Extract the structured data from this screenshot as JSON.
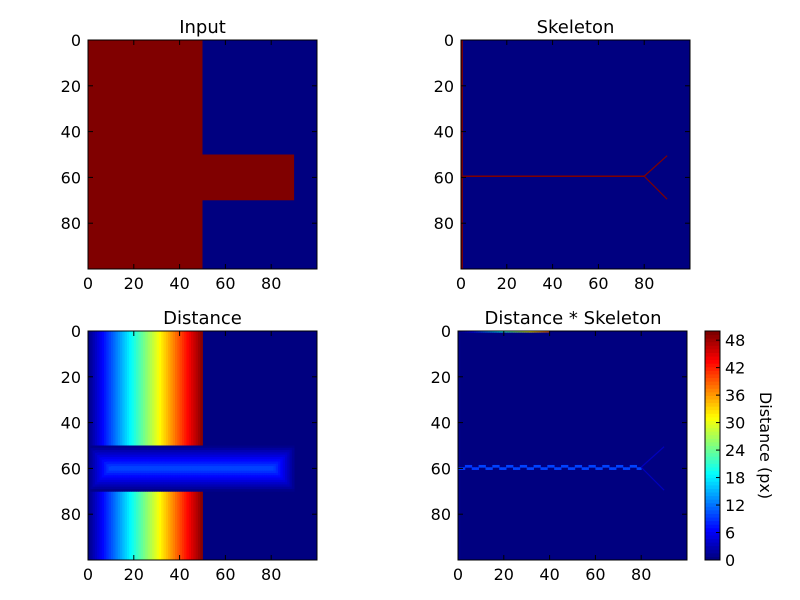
{
  "colormap": "jet",
  "chart_data": [
    {
      "type": "heatmap",
      "title": "Input",
      "image_shape": [
        100,
        100
      ],
      "xticks": [
        0,
        20,
        40,
        60,
        80
      ],
      "yticks": [
        0,
        20,
        40,
        60,
        80
      ],
      "xlim": [
        0,
        100
      ],
      "ylim": [
        100,
        0
      ],
      "value_range": [
        0,
        1
      ],
      "regions": [
        {
          "x": [
            0,
            50
          ],
          "y": [
            0,
            100
          ],
          "value": 1
        },
        {
          "x": [
            50,
            90
          ],
          "y": [
            50,
            70
          ],
          "value": 1
        }
      ]
    },
    {
      "type": "heatmap",
      "title": "Skeleton",
      "image_shape": [
        100,
        100
      ],
      "xticks": [
        0,
        20,
        40,
        60,
        80
      ],
      "yticks": [
        0,
        20,
        40,
        60,
        80
      ],
      "xlim": [
        0,
        100
      ],
      "ylim": [
        100,
        0
      ],
      "value_range": [
        0,
        1
      ],
      "skeleton": {
        "left_edge": {
          "x": 0,
          "y": [
            0,
            100
          ]
        },
        "spine": {
          "y": 59,
          "x": [
            0,
            80
          ]
        },
        "fork": [
          {
            "from": [
              80,
              59
            ],
            "to": [
              90,
              50
            ]
          },
          {
            "from": [
              80,
              59
            ],
            "to": [
              90,
              69
            ]
          }
        ]
      }
    },
    {
      "type": "heatmap",
      "title": "Distance",
      "image_shape": [
        100,
        100
      ],
      "xticks": [
        0,
        20,
        40,
        60,
        80
      ],
      "yticks": [
        0,
        20,
        40,
        60,
        80
      ],
      "xlim": [
        0,
        100
      ],
      "ylim": [
        100,
        0
      ],
      "value_range": [
        0,
        50
      ],
      "description": "distance to nearest background pixel within the input shape"
    },
    {
      "type": "heatmap",
      "title": "Distance * Skeleton",
      "image_shape": [
        100,
        100
      ],
      "xticks": [
        0,
        20,
        40,
        60,
        80
      ],
      "yticks": [
        0,
        20,
        40,
        60,
        80
      ],
      "xlim": [
        0,
        100
      ],
      "ylim": [
        100,
        0
      ],
      "value_range": [
        0,
        50
      ],
      "colorbar": {
        "label": "Distance (px)",
        "ticks": [
          0,
          6,
          12,
          18,
          24,
          30,
          36,
          42,
          48
        ],
        "range": [
          0,
          50
        ]
      }
    }
  ]
}
